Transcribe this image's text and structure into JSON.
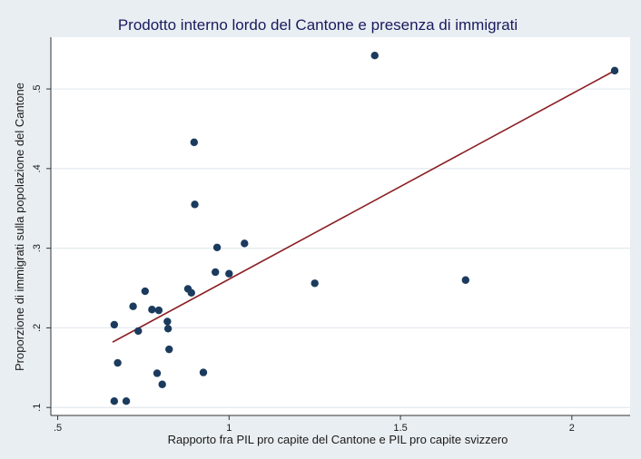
{
  "chart_data": {
    "type": "scatter",
    "title": "Prodotto interno lordo del Cantone e presenza di immigrati",
    "xlabel": "Rapporto fra PIL pro capite del Cantone e PIL pro capite svizzero",
    "ylabel": "Proporzione di immigrati sulla popolazione del Cantone",
    "xlim": [
      0.48,
      2.17
    ],
    "ylim": [
      0.09,
      0.565
    ],
    "grid": true,
    "x_ticks": [
      0.5,
      1,
      1.5,
      2
    ],
    "x_tick_labels": [
      ".5",
      "1",
      "1.5",
      "2"
    ],
    "y_ticks": [
      0.1,
      0.2,
      0.3,
      0.4,
      0.5
    ],
    "y_tick_labels": [
      ".1",
      ".2",
      ".3",
      ".4",
      ".5"
    ],
    "colors": {
      "points": "#1b3b5e",
      "fit_line": "#8b1f24",
      "grid": "#ffffff",
      "plot_bg": "#ffffff",
      "page_bg": "#e9eef2"
    },
    "points": [
      {
        "x": 0.665,
        "y": 0.204
      },
      {
        "x": 0.665,
        "y": 0.108
      },
      {
        "x": 0.675,
        "y": 0.156
      },
      {
        "x": 0.7,
        "y": 0.108
      },
      {
        "x": 0.72,
        "y": 0.227
      },
      {
        "x": 0.735,
        "y": 0.196
      },
      {
        "x": 0.755,
        "y": 0.246
      },
      {
        "x": 0.775,
        "y": 0.223
      },
      {
        "x": 0.79,
        "y": 0.143
      },
      {
        "x": 0.795,
        "y": 0.222
      },
      {
        "x": 0.805,
        "y": 0.129
      },
      {
        "x": 0.82,
        "y": 0.208
      },
      {
        "x": 0.822,
        "y": 0.199
      },
      {
        "x": 0.825,
        "y": 0.173
      },
      {
        "x": 0.88,
        "y": 0.249
      },
      {
        "x": 0.89,
        "y": 0.244
      },
      {
        "x": 0.898,
        "y": 0.433
      },
      {
        "x": 0.9,
        "y": 0.355
      },
      {
        "x": 0.925,
        "y": 0.144
      },
      {
        "x": 0.96,
        "y": 0.27
      },
      {
        "x": 0.965,
        "y": 0.301
      },
      {
        "x": 1.0,
        "y": 0.268
      },
      {
        "x": 1.045,
        "y": 0.306
      },
      {
        "x": 1.25,
        "y": 0.256
      },
      {
        "x": 1.425,
        "y": 0.542
      },
      {
        "x": 1.69,
        "y": 0.26
      },
      {
        "x": 2.125,
        "y": 0.523
      }
    ],
    "fit_line": {
      "x": [
        0.66,
        2.125
      ],
      "y": [
        0.182,
        0.523
      ]
    }
  }
}
